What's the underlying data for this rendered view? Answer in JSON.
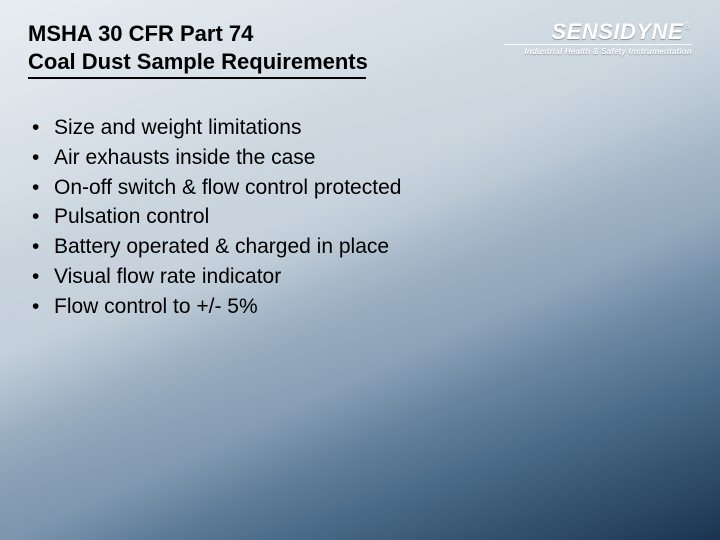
{
  "title": {
    "line1": "MSHA 30 CFR Part 74",
    "line2": "Coal Dust Sample Requirements"
  },
  "logo": {
    "brand": "SENSIDYNE",
    "registered": "®",
    "tagline": "Industrial Health & Safety Instrumentation"
  },
  "bullets": [
    "Size and weight limitations",
    "Air exhausts inside the case",
    "On-off switch & flow control protected",
    "Pulsation control",
    "Battery operated & charged in place",
    "Visual flow rate indicator",
    "Flow control to +/- 5%"
  ],
  "colors": {
    "text": "#000000",
    "logo_text": "#ffffff",
    "bg_top": "#e8edf1",
    "bg_bottom": "#1a3450"
  },
  "typography": {
    "title_fontsize_pt": 17,
    "body_fontsize_pt": 16,
    "logo_fontsize_pt": 17,
    "tagline_fontsize_pt": 6
  }
}
